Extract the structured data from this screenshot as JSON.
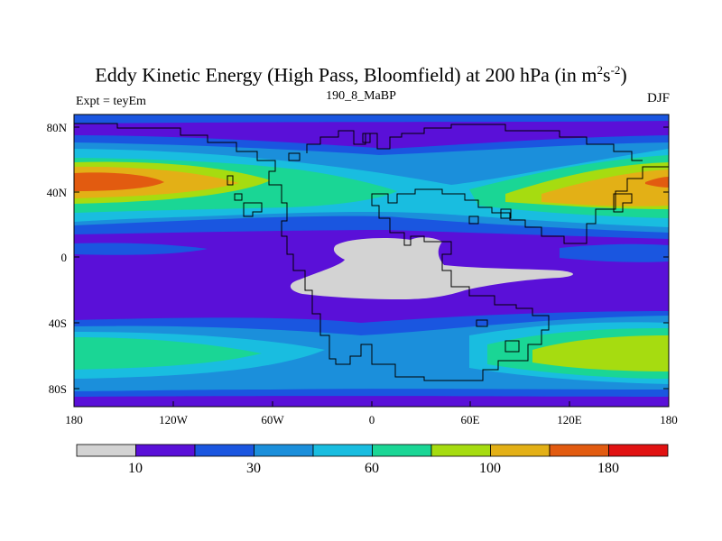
{
  "title": {
    "main": "Eddy Kinetic Energy (High Pass, Bloomfield) at 200 hPa (in m",
    "sup1": "2",
    "mid": "s",
    "sup2": "-2",
    "end": ")"
  },
  "subtitle": "190_8_MaBP",
  "left_label": "Expt = teyEm",
  "right_label": "DJF",
  "lat_ticks": [
    "80N",
    "40N",
    "0",
    "40S",
    "80S"
  ],
  "lon_ticks": [
    "180",
    "120W",
    "60W",
    "0",
    "60E",
    "120E",
    "180"
  ],
  "colorbar": {
    "colors": [
      "#d3d3d3",
      "#5a10d8",
      "#1a56e0",
      "#1b8fdb",
      "#19bde0",
      "#1ad695",
      "#a6dc10",
      "#e3b016",
      "#e25b10",
      "#e11212"
    ],
    "labels": [
      "10",
      "30",
      "60",
      "100",
      "180"
    ]
  },
  "colors": {
    "ocean_base": "#5a10d8",
    "land_mask": "#d3d3d3",
    "coastline": "#000000"
  }
}
